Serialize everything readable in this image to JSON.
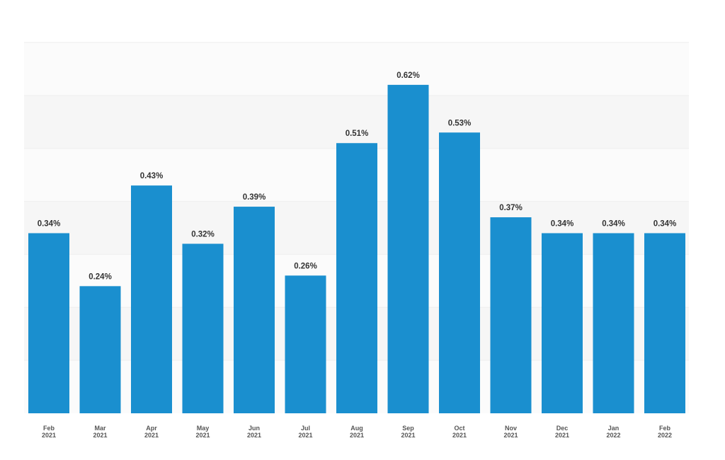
{
  "chart_data": {
    "type": "bar",
    "categories": [
      {
        "month": "Feb",
        "year": "2021"
      },
      {
        "month": "Mar",
        "year": "2021"
      },
      {
        "month": "Apr",
        "year": "2021"
      },
      {
        "month": "May",
        "year": "2021"
      },
      {
        "month": "Jun",
        "year": "2021"
      },
      {
        "month": "Jul",
        "year": "2021"
      },
      {
        "month": "Aug",
        "year": "2021"
      },
      {
        "month": "Sep",
        "year": "2021"
      },
      {
        "month": "Oct",
        "year": "2021"
      },
      {
        "month": "Nov",
        "year": "2021"
      },
      {
        "month": "Dec",
        "year": "2021"
      },
      {
        "month": "Jan",
        "year": "2022"
      },
      {
        "month": "Feb",
        "year": "2022"
      }
    ],
    "values": [
      0.34,
      0.24,
      0.43,
      0.32,
      0.39,
      0.26,
      0.51,
      0.62,
      0.53,
      0.37,
      0.34,
      0.34,
      0.34
    ],
    "value_labels": [
      "0.34%",
      "0.24%",
      "0.43%",
      "0.32%",
      "0.39%",
      "0.26%",
      "0.51%",
      "0.62%",
      "0.53%",
      "0.37%",
      "0.34%",
      "0.34%",
      "0.34%"
    ],
    "unit": "%",
    "title": "",
    "xlabel": "",
    "ylabel": "",
    "ylim": [
      0,
      0.7
    ],
    "y_axis_labels_shown": false,
    "grid": "horizontal alternating bands",
    "legend": "none",
    "colors": {
      "bar": "#1a8fcf",
      "band_light": "#fbfbfb",
      "band_dark": "#f6f6f6",
      "grid_line": "#eeeeee",
      "value_label": "#333333",
      "tick_label": "#555555"
    }
  }
}
